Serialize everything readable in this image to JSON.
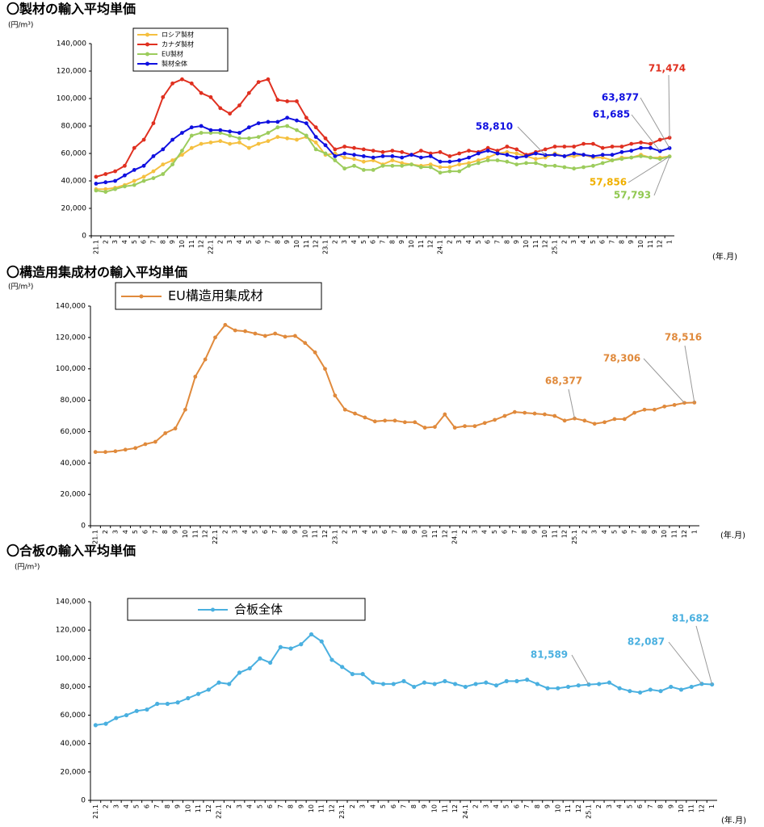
{
  "chart_data": [
    {
      "type": "line",
      "title": "〇製材の輸入平均単価",
      "y_unit": "(円/m³)",
      "x_unit": "(年.月)",
      "categories": [
        "21.1",
        "2",
        "3",
        "4",
        "5",
        "6",
        "7",
        "8",
        "9",
        "10",
        "11",
        "12",
        "22.1",
        "2",
        "3",
        "4",
        "5",
        "6",
        "7",
        "8",
        "9",
        "10",
        "11",
        "12",
        "23.1",
        "2",
        "3",
        "4",
        "5",
        "6",
        "7",
        "8",
        "9",
        "10",
        "11",
        "12",
        "24.1",
        "2",
        "3",
        "4",
        "5",
        "6",
        "7",
        "8",
        "9",
        "10",
        "11",
        "12",
        "25.1",
        "2",
        "3",
        "4",
        "5",
        "6",
        "7",
        "8",
        "9",
        "10",
        "11",
        "12",
        "1"
      ],
      "ylim": [
        0,
        140000
      ],
      "yticks": [
        0,
        {
          "value": 20000,
          "label": "20,000"
        },
        {
          "value": 40000,
          "label": "40,000"
        },
        {
          "value": 60000,
          "label": "60,000"
        },
        {
          "value": 80000,
          "label": "80,000"
        },
        {
          "value": 100000,
          "label": "100,000"
        },
        {
          "value": 120000,
          "label": "120,000"
        },
        {
          "value": 140000,
          "label": "140,000"
        }
      ],
      "grid": false,
      "series": [
        {
          "name": "ロシア製材",
          "color": "#f5c040",
          "label_color": "#f0b000",
          "values": [
            34000,
            34000,
            35000,
            37000,
            40000,
            43000,
            47000,
            52000,
            55000,
            59000,
            64000,
            67000,
            68000,
            69000,
            67000,
            68000,
            64000,
            67000,
            69000,
            72000,
            71000,
            70000,
            72000,
            68000,
            59000,
            60000,
            57000,
            56000,
            54000,
            55000,
            52000,
            55000,
            53000,
            52000,
            51000,
            52000,
            50000,
            50000,
            52000,
            53000,
            55000,
            57000,
            60000,
            61000,
            60000,
            58000,
            56000,
            57000,
            60000,
            58000,
            58000,
            59000,
            57000,
            57000,
            55000,
            57000,
            57000,
            59000,
            57000,
            57000,
            57856
          ],
          "value_labels": [
            null,
            null,
            null,
            null,
            null,
            null,
            null,
            null,
            null,
            null,
            null,
            null,
            null,
            null,
            null,
            null,
            null,
            null,
            null,
            null,
            null,
            null,
            null,
            null,
            null,
            null,
            null,
            null,
            null,
            null,
            null,
            null,
            null,
            null,
            null,
            null,
            null,
            null,
            null,
            null,
            null,
            null,
            null,
            null,
            null,
            null,
            null,
            null,
            null,
            null,
            null,
            null,
            null,
            null,
            null,
            null,
            null,
            null,
            null,
            null,
            "57,856"
          ]
        },
        {
          "name": "カナダ製材",
          "color": "#e03020",
          "label_color": "#e03020",
          "values": [
            43000,
            45000,
            47000,
            51000,
            64000,
            70000,
            82000,
            101000,
            111000,
            114000,
            111000,
            104000,
            101000,
            93000,
            89000,
            95000,
            104000,
            112000,
            114000,
            99000,
            98000,
            98000,
            86000,
            79000,
            71000,
            63000,
            65000,
            64000,
            63000,
            62000,
            61000,
            62000,
            61000,
            59000,
            62000,
            60000,
            61000,
            58000,
            60000,
            62000,
            61000,
            64000,
            62000,
            65000,
            63000,
            59000,
            61000,
            63000,
            65000,
            65000,
            65000,
            67000,
            67000,
            64000,
            65000,
            65000,
            67000,
            68000,
            67000,
            70000,
            71474
          ],
          "value_labels": [
            null,
            null,
            null,
            null,
            null,
            null,
            null,
            null,
            null,
            null,
            null,
            null,
            null,
            null,
            null,
            null,
            null,
            null,
            null,
            null,
            null,
            null,
            null,
            null,
            null,
            null,
            null,
            null,
            null,
            null,
            null,
            null,
            null,
            null,
            null,
            null,
            null,
            null,
            null,
            null,
            null,
            null,
            null,
            null,
            null,
            null,
            null,
            null,
            null,
            null,
            null,
            null,
            null,
            null,
            null,
            null,
            null,
            null,
            null,
            null,
            "71,474"
          ]
        },
        {
          "name": "EU製材",
          "color": "#9ccc5c",
          "label_color": "#90c850",
          "values": [
            33000,
            32000,
            34000,
            36000,
            37000,
            40000,
            42000,
            45000,
            52000,
            62000,
            73000,
            75000,
            75000,
            75000,
            73000,
            71000,
            71000,
            72000,
            75000,
            79000,
            80000,
            77000,
            73000,
            63000,
            60000,
            55000,
            49000,
            51000,
            48000,
            48000,
            51000,
            51000,
            51000,
            52000,
            50000,
            50000,
            46000,
            47000,
            47000,
            51000,
            53000,
            55000,
            55000,
            54000,
            52000,
            53000,
            53000,
            51000,
            51000,
            50000,
            49000,
            50000,
            51000,
            53000,
            55000,
            56000,
            57000,
            58000,
            57000,
            56000,
            57793
          ],
          "value_labels": [
            null,
            null,
            null,
            null,
            null,
            null,
            null,
            null,
            null,
            null,
            null,
            null,
            null,
            null,
            null,
            null,
            null,
            null,
            null,
            null,
            null,
            null,
            null,
            null,
            null,
            null,
            null,
            null,
            null,
            null,
            null,
            null,
            null,
            null,
            null,
            null,
            null,
            null,
            null,
            null,
            null,
            null,
            null,
            null,
            null,
            null,
            null,
            null,
            null,
            null,
            null,
            null,
            null,
            null,
            null,
            null,
            null,
            null,
            null,
            null,
            "57,793"
          ]
        },
        {
          "name": "製材全体",
          "color": "#1010e0",
          "label_color": "#1010e0",
          "values": [
            38000,
            39000,
            40000,
            44000,
            48000,
            51000,
            58000,
            63000,
            70000,
            75000,
            79000,
            80000,
            77000,
            77000,
            76000,
            75000,
            79000,
            82000,
            83000,
            83000,
            86000,
            84000,
            82000,
            72000,
            66000,
            58000,
            60000,
            59000,
            58000,
            57000,
            58000,
            58000,
            57000,
            59000,
            57000,
            58000,
            54000,
            54000,
            55000,
            57000,
            60000,
            62000,
            60000,
            59000,
            57000,
            58000,
            60000,
            58810,
            59000,
            58000,
            60000,
            59000,
            58000,
            59000,
            59000,
            61000,
            62000,
            64000,
            64000,
            61685,
            63877
          ],
          "value_labels": [
            null,
            null,
            null,
            null,
            null,
            null,
            null,
            null,
            null,
            null,
            null,
            null,
            null,
            null,
            null,
            null,
            null,
            null,
            null,
            null,
            null,
            null,
            null,
            null,
            null,
            null,
            null,
            null,
            null,
            null,
            null,
            null,
            null,
            null,
            null,
            null,
            null,
            null,
            null,
            null,
            null,
            null,
            null,
            null,
            null,
            null,
            null,
            "58,810",
            null,
            null,
            null,
            null,
            null,
            null,
            null,
            null,
            null,
            null,
            null,
            "61,685",
            "63,877"
          ]
        }
      ]
    },
    {
      "type": "line",
      "title": "〇構造用集成材の輸入平均単価",
      "y_unit": "(円/m³)",
      "x_unit": "(年.月)",
      "categories": [
        "21.1",
        "2",
        "3",
        "4",
        "5",
        "6",
        "7",
        "8",
        "9",
        "10",
        "11",
        "12",
        "22.1",
        "2",
        "3",
        "4",
        "5",
        "6",
        "7",
        "8",
        "9",
        "10",
        "11",
        "12",
        "23.1",
        "2",
        "3",
        "4",
        "5",
        "6",
        "7",
        "8",
        "9",
        "10",
        "11",
        "12",
        "24.1",
        "2",
        "3",
        "4",
        "5",
        "6",
        "7",
        "8",
        "9",
        "10",
        "11",
        "12",
        "25.1",
        "2",
        "3",
        "4",
        "5",
        "6",
        "7",
        "8",
        "9",
        "10",
        "11",
        "12",
        "1"
      ],
      "ylim": [
        0,
        140000
      ],
      "yticks": [
        0,
        {
          "value": 20000,
          "label": "20,000"
        },
        {
          "value": 40000,
          "label": "40,000"
        },
        {
          "value": 60000,
          "label": "60,000"
        },
        {
          "value": 80000,
          "label": "80,000"
        },
        {
          "value": 100000,
          "label": "100,000"
        },
        {
          "value": 120000,
          "label": "120,000"
        },
        {
          "value": 140000,
          "label": "140,000"
        }
      ],
      "grid": false,
      "series": [
        {
          "name": "EU構造用集成材",
          "color": "#e08a3c",
          "label_color": "#e08a3c",
          "values": [
            47000,
            47000,
            47500,
            48500,
            49500,
            52000,
            53500,
            59000,
            62000,
            74000,
            95000,
            106000,
            120000,
            128000,
            124500,
            124000,
            122500,
            121000,
            122500,
            120500,
            121000,
            116500,
            110500,
            100000,
            83000,
            74000,
            71500,
            69000,
            66500,
            67000,
            67000,
            66000,
            66000,
            62500,
            63000,
            71000,
            62500,
            63500,
            63500,
            65500,
            67500,
            70000,
            72500,
            72000,
            71500,
            71000,
            70000,
            67000,
            68377,
            67000,
            65000,
            66000,
            68000,
            68000,
            72000,
            74000,
            74000,
            76000,
            77000,
            78306,
            78516
          ],
          "value_labels": [
            null,
            null,
            null,
            null,
            null,
            null,
            null,
            null,
            null,
            null,
            null,
            null,
            null,
            null,
            null,
            null,
            null,
            null,
            null,
            null,
            null,
            null,
            null,
            null,
            null,
            null,
            null,
            null,
            null,
            null,
            null,
            null,
            null,
            null,
            null,
            null,
            null,
            null,
            null,
            null,
            null,
            null,
            null,
            null,
            null,
            null,
            null,
            null,
            "68,377",
            null,
            null,
            null,
            null,
            null,
            null,
            null,
            null,
            null,
            null,
            "78,306",
            "78,516"
          ]
        }
      ]
    },
    {
      "type": "line",
      "title": "〇合板の輸入平均単価",
      "y_unit": "(円/m³)",
      "x_unit": "(年.月)",
      "categories": [
        "21.1",
        "2",
        "3",
        "4",
        "5",
        "6",
        "7",
        "8",
        "9",
        "10",
        "11",
        "12",
        "22.1",
        "2",
        "3",
        "4",
        "5",
        "6",
        "7",
        "8",
        "9",
        "10",
        "11",
        "12",
        "23.1",
        "2",
        "3",
        "4",
        "5",
        "6",
        "7",
        "8",
        "9",
        "10",
        "11",
        "12",
        "24.1",
        "2",
        "3",
        "4",
        "5",
        "6",
        "7",
        "8",
        "9",
        "10",
        "11",
        "12",
        "25.1",
        "2",
        "3",
        "4",
        "5",
        "6",
        "7",
        "8",
        "9",
        "10",
        "11",
        "12",
        "1"
      ],
      "ylim": [
        0,
        140000
      ],
      "yticks": [
        0,
        {
          "value": 20000,
          "label": "20,000"
        },
        {
          "value": 40000,
          "label": "40,000"
        },
        {
          "value": 60000,
          "label": "60,000"
        },
        {
          "value": 80000,
          "label": "80,000"
        },
        {
          "value": 100000,
          "label": "100,000"
        },
        {
          "value": 120000,
          "label": "120,000"
        },
        {
          "value": 140000,
          "label": "140,000"
        }
      ],
      "grid": false,
      "series": [
        {
          "name": "合板全体",
          "color": "#4ab0e0",
          "label_color": "#4ab0e0",
          "values": [
            53000,
            54000,
            58000,
            60000,
            63000,
            64000,
            68000,
            68000,
            69000,
            72000,
            75000,
            78000,
            83000,
            82000,
            90000,
            93000,
            100000,
            97000,
            108000,
            107000,
            110000,
            117000,
            112000,
            99000,
            94000,
            89000,
            89000,
            83000,
            82000,
            82000,
            84000,
            80000,
            83000,
            82000,
            84000,
            82000,
            80000,
            82000,
            83000,
            81000,
            84000,
            84000,
            85000,
            82000,
            79000,
            79000,
            80000,
            81000,
            81589,
            82000,
            83000,
            79000,
            77000,
            76000,
            78000,
            77000,
            80000,
            78000,
            80000,
            82087,
            81682
          ],
          "value_labels": [
            null,
            null,
            null,
            null,
            null,
            null,
            null,
            null,
            null,
            null,
            null,
            null,
            null,
            null,
            null,
            null,
            null,
            null,
            null,
            null,
            null,
            null,
            null,
            null,
            null,
            null,
            null,
            null,
            null,
            null,
            null,
            null,
            null,
            null,
            null,
            null,
            null,
            null,
            null,
            null,
            null,
            null,
            null,
            null,
            null,
            null,
            null,
            null,
            "81,589",
            null,
            null,
            null,
            null,
            null,
            null,
            null,
            null,
            null,
            null,
            "82,087",
            "81,682"
          ]
        }
      ]
    }
  ]
}
